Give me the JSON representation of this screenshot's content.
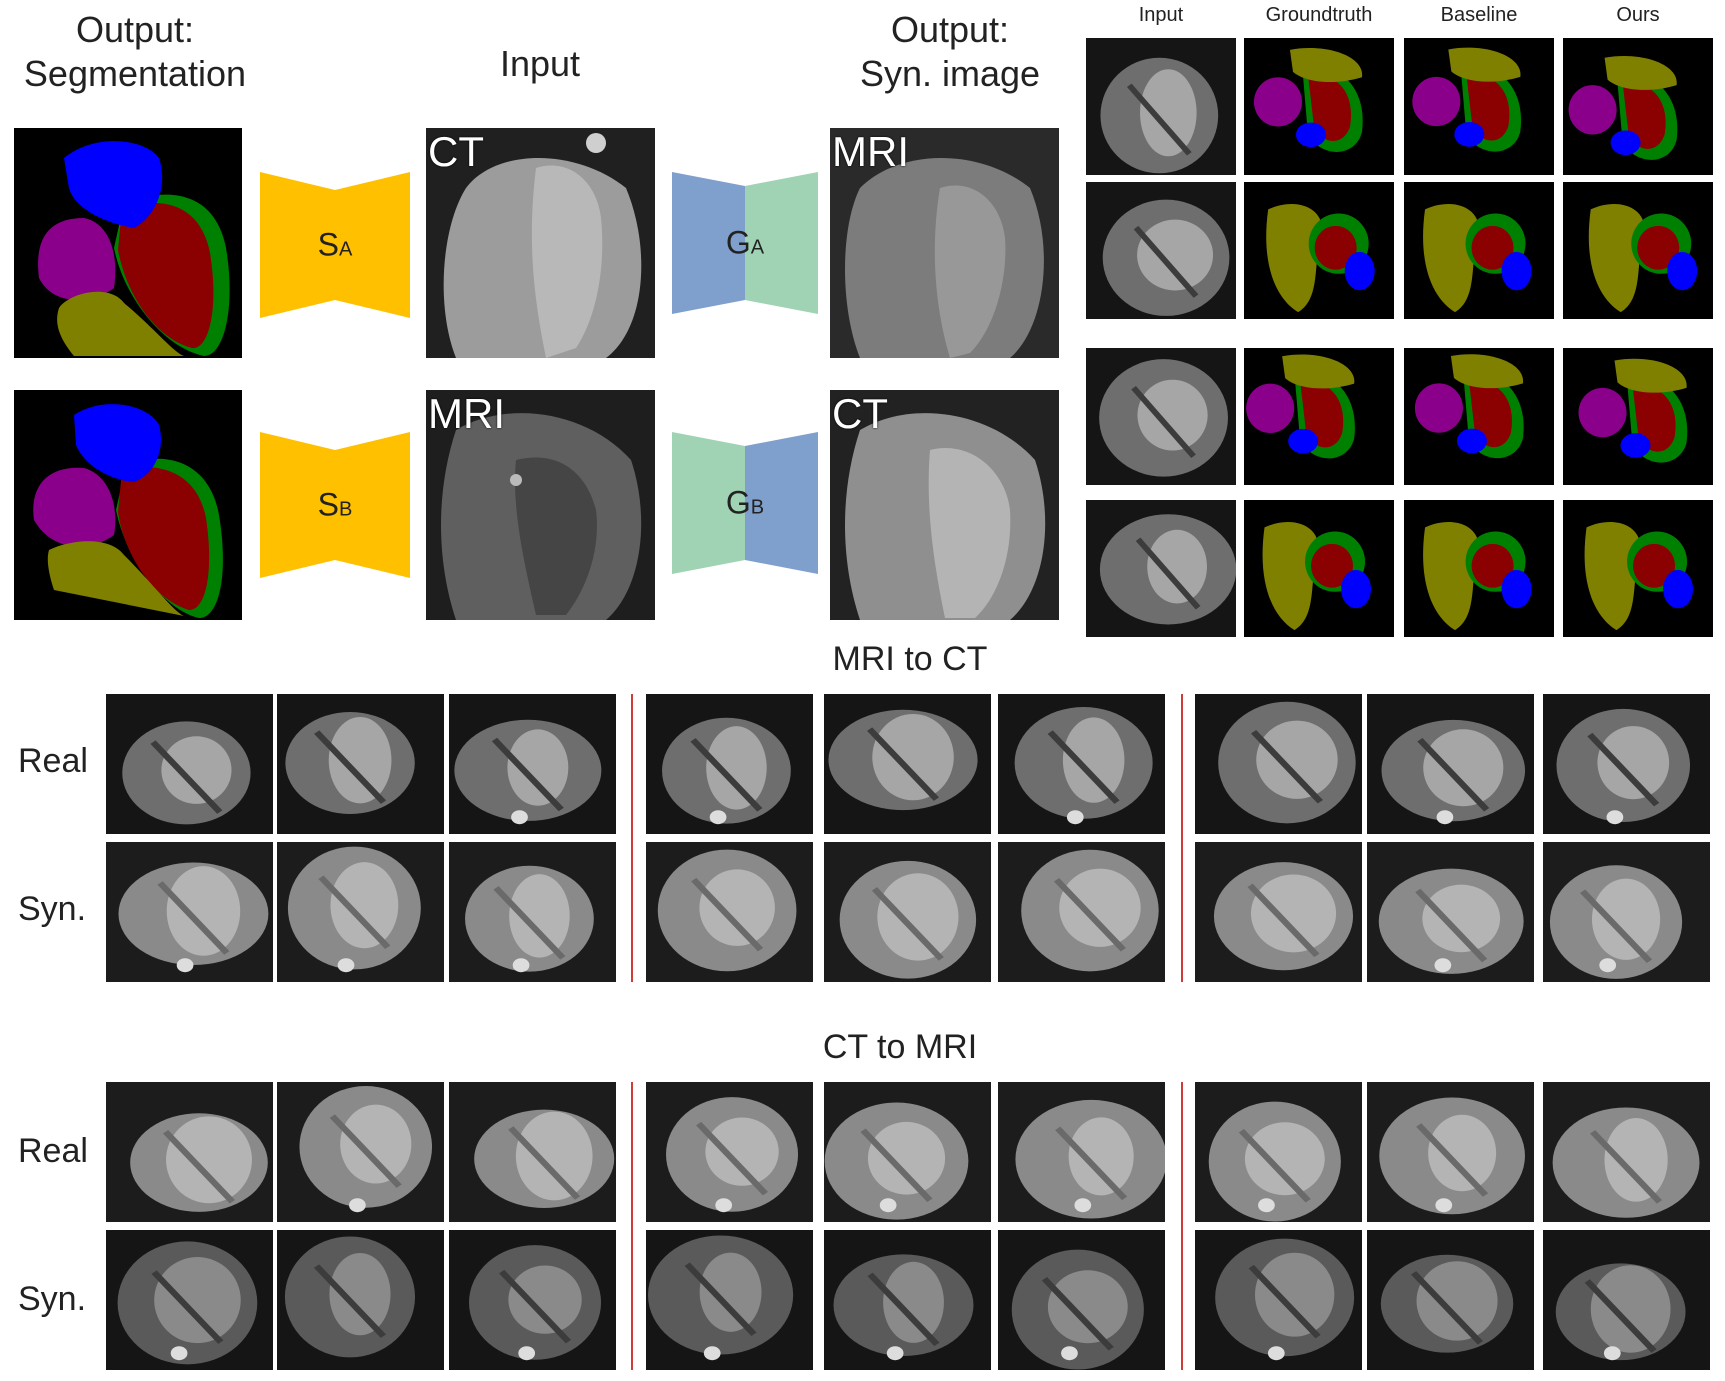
{
  "diagram": {
    "headers": {
      "seg": [
        "Output:",
        "Segmentation"
      ],
      "input": "Input",
      "syn": [
        "Output:",
        "Syn. image"
      ]
    },
    "row_a": {
      "input_label": "CT",
      "seg_net": "S",
      "seg_net_sub": "A",
      "gen_net": "G",
      "gen_net_sub": "A",
      "output_label": "MRI"
    },
    "row_b": {
      "input_label": "MRI",
      "seg_net": "S",
      "seg_net_sub": "B",
      "gen_net": "G",
      "gen_net_sub": "B",
      "output_label": "CT"
    }
  },
  "comparison": {
    "columns": [
      "Input",
      "Groundtruth",
      "Baseline",
      "Ours"
    ]
  },
  "mri_to_ct": {
    "title": "MRI to CT",
    "rows": [
      "Real",
      "Syn."
    ]
  },
  "ct_to_mri": {
    "title": "CT to MRI",
    "rows": [
      "Real",
      "Syn."
    ]
  },
  "colors": {
    "seg_blue": "#0000ff",
    "seg_purple": "#8b008b",
    "seg_olive": "#808000",
    "seg_red": "#8b0000",
    "seg_green": "#008000",
    "net_seg": "#ffc000",
    "net_gen_blue": "#7f9fcc",
    "net_gen_green": "#9fd3b4",
    "separator": "#d23a3a"
  }
}
